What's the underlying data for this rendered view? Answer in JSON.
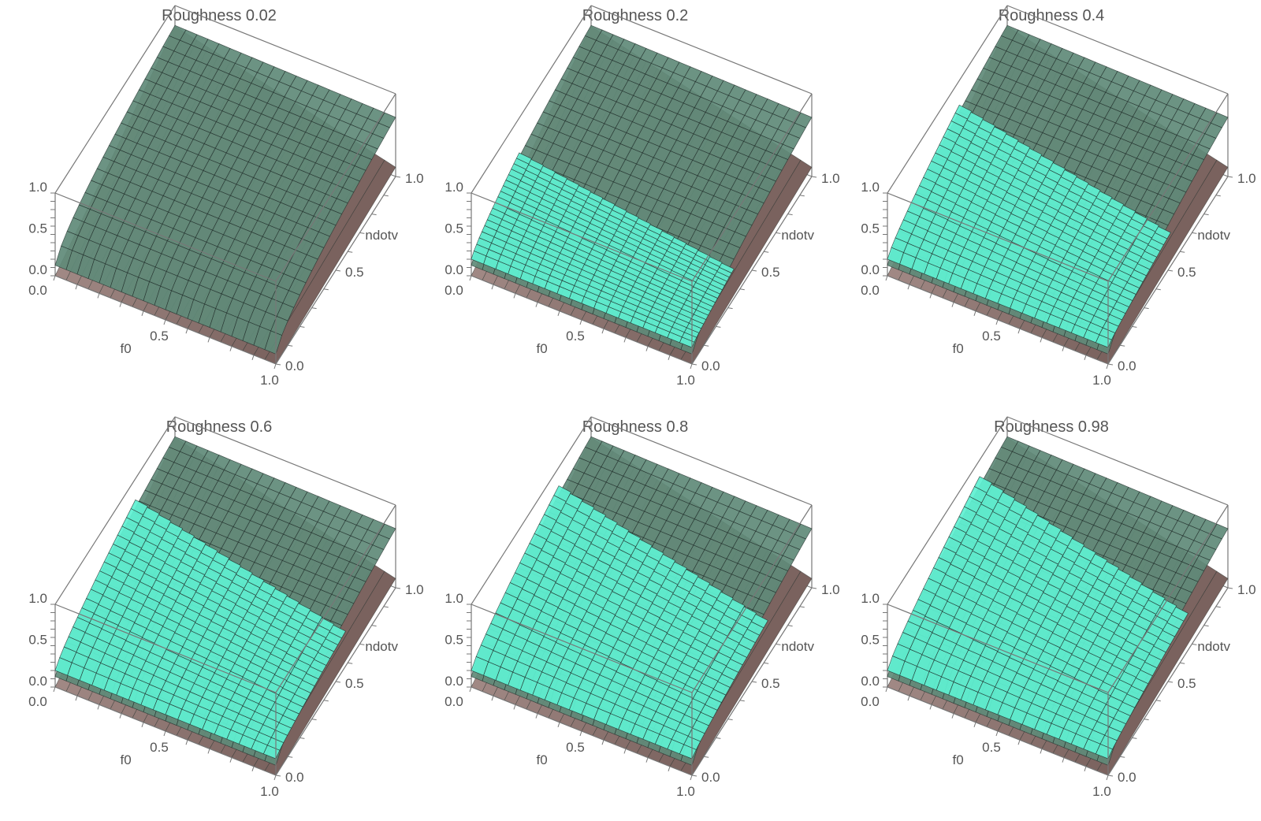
{
  "chart_data": [
    {
      "type": "surface3d",
      "title": "Roughness 0.02",
      "roughness": 0.02,
      "cyan_extent": 0.0,
      "xlabel": "f0",
      "ylabel": "ndotv",
      "zlabel": "",
      "xticks": [
        "0.0",
        "0.5",
        "1.0"
      ],
      "yticks": [
        "0.0",
        "0.5",
        "1.0"
      ],
      "zticks": [
        "0.0",
        "0.5",
        "1.0"
      ],
      "xlim": [
        0,
        1
      ],
      "ylim": [
        0,
        1
      ],
      "zlim": [
        0,
        1
      ]
    },
    {
      "type": "surface3d",
      "title": "Roughness 0.2",
      "roughness": 0.2,
      "cyan_extent": 0.35,
      "xlabel": "f0",
      "ylabel": "ndotv",
      "zlabel": "",
      "xticks": [
        "0.0",
        "0.5",
        "1.0"
      ],
      "yticks": [
        "0.0",
        "0.5",
        "1.0"
      ],
      "zticks": [
        "0.0",
        "0.5",
        "1.0"
      ],
      "xlim": [
        0,
        1
      ],
      "ylim": [
        0,
        1
      ],
      "zlim": [
        0,
        1
      ]
    },
    {
      "type": "surface3d",
      "title": "Roughness 0.4",
      "roughness": 0.4,
      "cyan_extent": 0.55,
      "xlabel": "f0",
      "ylabel": "ndotv",
      "zlabel": "",
      "xticks": [
        "0.0",
        "0.5",
        "1.0"
      ],
      "yticks": [
        "0.0",
        "0.5",
        "1.0"
      ],
      "zticks": [
        "0.0",
        "0.5",
        "1.0"
      ],
      "xlim": [
        0,
        1
      ],
      "ylim": [
        0,
        1
      ],
      "zlim": [
        0,
        1
      ]
    },
    {
      "type": "surface3d",
      "title": "Roughness 0.6",
      "roughness": 0.6,
      "cyan_extent": 0.62,
      "xlabel": "f0",
      "ylabel": "ndotv",
      "zlabel": "",
      "xticks": [
        "0.0",
        "0.5",
        "1.0"
      ],
      "yticks": [
        "0.0",
        "0.5",
        "1.0"
      ],
      "zticks": [
        "0.0",
        "0.5",
        "1.0"
      ],
      "xlim": [
        0,
        1
      ],
      "ylim": [
        0,
        1
      ],
      "zlim": [
        0,
        1
      ]
    },
    {
      "type": "surface3d",
      "title": "Roughness 0.8",
      "roughness": 0.8,
      "cyan_extent": 0.68,
      "xlabel": "f0",
      "ylabel": "ndotv",
      "zlabel": "",
      "xticks": [
        "0.0",
        "0.5",
        "1.0"
      ],
      "yticks": [
        "0.0",
        "0.5",
        "1.0"
      ],
      "zticks": [
        "0.0",
        "0.5",
        "1.0"
      ],
      "xlim": [
        0,
        1
      ],
      "ylim": [
        0,
        1
      ],
      "zlim": [
        0,
        1
      ]
    },
    {
      "type": "surface3d",
      "title": "Roughness 0.98",
      "roughness": 0.98,
      "cyan_extent": 0.72,
      "xlabel": "f0",
      "ylabel": "ndotv",
      "zlabel": "",
      "xticks": [
        "0.0",
        "0.5",
        "1.0"
      ],
      "yticks": [
        "0.0",
        "0.5",
        "1.0"
      ],
      "zticks": [
        "0.0",
        "0.5",
        "1.0"
      ],
      "xlim": [
        0,
        1
      ],
      "ylim": [
        0,
        1
      ],
      "zlim": [
        0,
        1
      ]
    }
  ],
  "colors": {
    "dark_surface": "#5f8a78",
    "cyan_surface": "#5ff0d2",
    "base_surface": "#9a8080",
    "mesh": "#1e2a26",
    "box": "#777777",
    "text": "#555555"
  }
}
